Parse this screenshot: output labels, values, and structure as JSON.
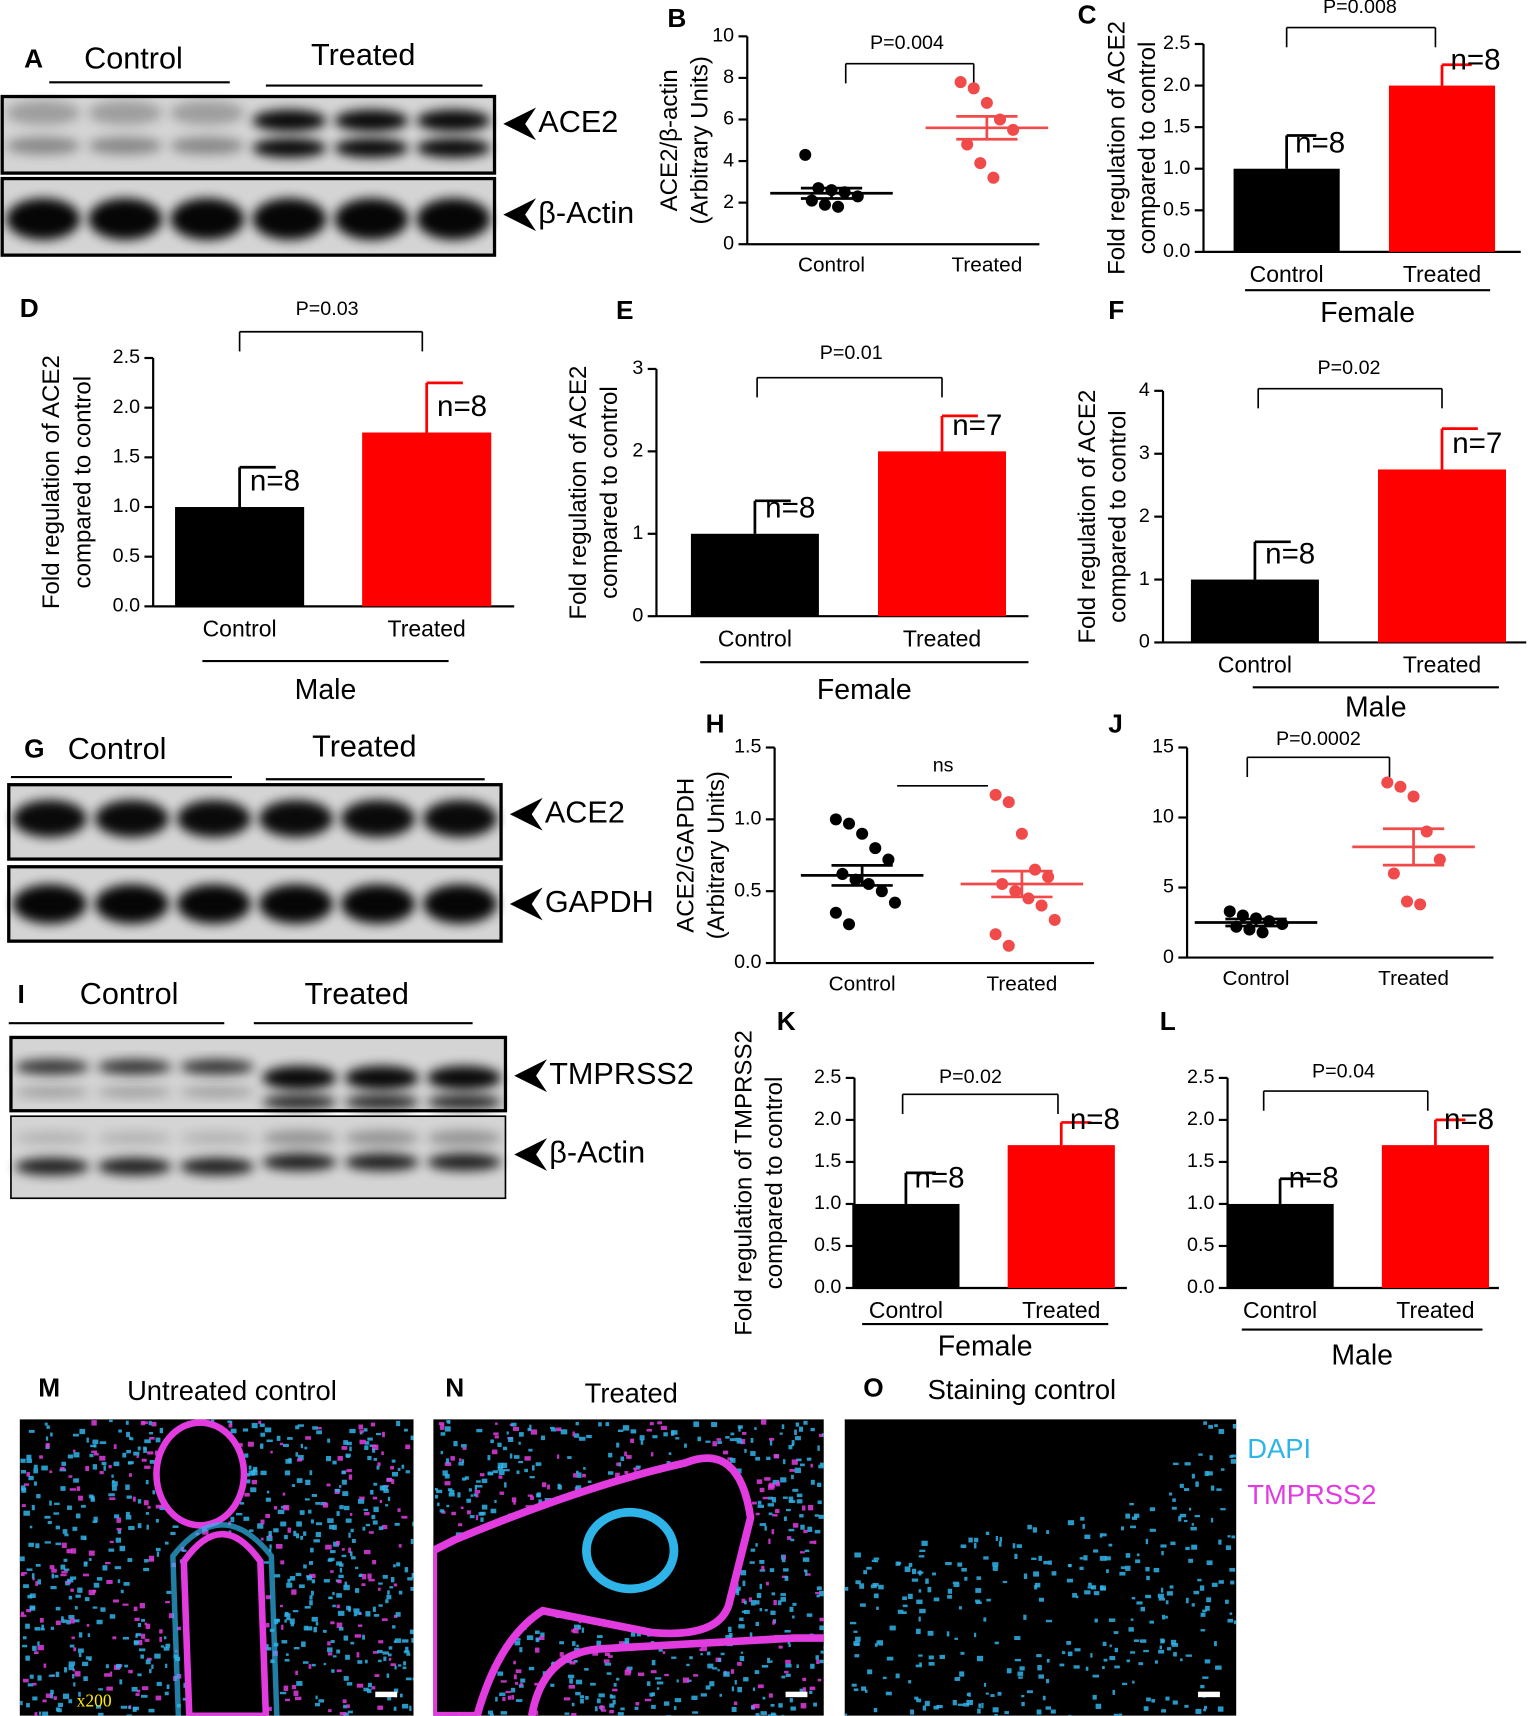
{
  "chart_data": [
    {
      "type": "scatter",
      "panel": "B",
      "ylabel": [
        "ACE2/β-actin",
        "(Arbitrary Units)"
      ],
      "p_label": "P=0.004",
      "ylim": [
        0,
        10
      ],
      "yticks": [
        0,
        2,
        4,
        6,
        8,
        10
      ],
      "series": [
        {
          "name": "Control",
          "color": "#000000",
          "values": [
            4.3,
            2.7,
            2.6,
            2.5,
            2.3,
            2.1,
            1.9,
            1.8
          ],
          "mean": 2.45,
          "sem": 0.25
        },
        {
          "name": "Treated",
          "color": "#f04a4a",
          "values": [
            7.8,
            7.5,
            6.8,
            6.0,
            5.5,
            4.8,
            3.9,
            3.2
          ],
          "mean": 5.6,
          "sem": 0.55
        }
      ]
    },
    {
      "type": "bar",
      "panel": "C",
      "ylabel": [
        "Fold regulation of ACE2",
        "compared to control"
      ],
      "p_label": "P=0.008",
      "group_label": "Female",
      "categories": [
        "Control",
        "Treated"
      ],
      "values": [
        1.0,
        2.0
      ],
      "errors": [
        0.4,
        0.25
      ],
      "n_labels": [
        "n=8",
        "n=8"
      ],
      "colors": [
        "#000000",
        "#ff0000"
      ],
      "ylim": [
        0,
        2.5
      ],
      "yticks": [
        {
          "value": 0,
          "label": "0.0"
        },
        {
          "value": 0.5,
          "label": "0.5"
        },
        {
          "value": 1,
          "label": "1.0"
        },
        {
          "value": 1.5,
          "label": "1.5"
        },
        {
          "value": 2,
          "label": "2.0"
        },
        {
          "value": 2.5,
          "label": "2.5"
        }
      ]
    },
    {
      "type": "bar",
      "panel": "D",
      "ylabel": [
        "Fold regulation of ACE2",
        "compared to control"
      ],
      "p_label": "P=0.03",
      "group_label": "Male",
      "categories": [
        "Control",
        "Treated"
      ],
      "values": [
        1.0,
        1.75
      ],
      "errors": [
        0.4,
        0.5
      ],
      "n_labels": [
        "n=8",
        "n=8"
      ],
      "colors": [
        "#000000",
        "#ff0000"
      ],
      "ylim": [
        0,
        2.5
      ],
      "yticks": [
        {
          "value": 0,
          "label": "0.0"
        },
        {
          "value": 0.5,
          "label": "0.5"
        },
        {
          "value": 1,
          "label": "1.0"
        },
        {
          "value": 1.5,
          "label": "1.5"
        },
        {
          "value": 2,
          "label": "2.0"
        },
        {
          "value": 2.5,
          "label": "2.5"
        }
      ]
    },
    {
      "type": "bar",
      "panel": "E",
      "ylabel": [
        "Fold regulation of ACE2",
        "compared to control"
      ],
      "p_label": "P=0.01",
      "group_label": "Female",
      "categories": [
        "Control",
        "Treated"
      ],
      "values": [
        1.0,
        2.0
      ],
      "errors": [
        0.4,
        0.43
      ],
      "n_labels": [
        "n=8",
        "n=7"
      ],
      "colors": [
        "#000000",
        "#ff0000"
      ],
      "ylim": [
        0,
        3
      ],
      "yticks": [
        0,
        1,
        2,
        3
      ]
    },
    {
      "type": "bar",
      "panel": "F",
      "ylabel": [
        "Fold regulation of ACE2",
        "compared to control"
      ],
      "p_label": "P=0.02",
      "group_label": "Male",
      "categories": [
        "Control",
        "Treated"
      ],
      "values": [
        1.0,
        2.75
      ],
      "errors": [
        0.6,
        0.65
      ],
      "n_labels": [
        "n=8",
        "n=7"
      ],
      "colors": [
        "#000000",
        "#ff0000"
      ],
      "ylim": [
        0,
        4
      ],
      "yticks": [
        0,
        1,
        2,
        3,
        4
      ]
    },
    {
      "type": "scatter",
      "panel": "H",
      "ylabel": [
        "ACE2/GAPDH",
        "(Arbitrary Units)"
      ],
      "p_label": "ns",
      "ylim": [
        0,
        1.5
      ],
      "yticks": [
        {
          "value": 0,
          "label": "0.0"
        },
        {
          "value": 0.5,
          "label": "0.5"
        },
        {
          "value": 1,
          "label": "1.0"
        },
        {
          "value": 1.5,
          "label": "1.5"
        }
      ],
      "series": [
        {
          "name": "Control",
          "color": "#000000",
          "values": [
            1.0,
            0.97,
            0.9,
            0.8,
            0.72,
            0.62,
            0.58,
            0.55,
            0.5,
            0.42,
            0.35,
            0.27
          ],
          "mean": 0.61,
          "sem": 0.07
        },
        {
          "name": "Treated",
          "color": "#f04a4a",
          "values": [
            1.17,
            1.12,
            0.9,
            0.65,
            0.6,
            0.55,
            0.5,
            0.45,
            0.4,
            0.3,
            0.2,
            0.12
          ],
          "mean": 0.55,
          "sem": 0.09
        }
      ]
    },
    {
      "type": "scatter",
      "panel": "J",
      "p_label": "P=0.0002",
      "ylim": [
        0,
        15
      ],
      "yticks": [
        0,
        5,
        10,
        15
      ],
      "series": [
        {
          "name": "Control",
          "color": "#000000",
          "values": [
            3.3,
            3.0,
            2.8,
            2.6,
            2.4,
            2.2,
            2.0,
            1.8
          ],
          "mean": 2.5,
          "sem": 0.25
        },
        {
          "name": "Treated",
          "color": "#f04a4a",
          "values": [
            12.5,
            12.2,
            11.5,
            9.0,
            7.0,
            6.0,
            4.0,
            3.8
          ],
          "mean": 7.9,
          "sem": 1.3
        }
      ]
    },
    {
      "type": "bar",
      "panel": "K",
      "ylabel": [
        "Fold regulation of TMPRSS2",
        "compared to control"
      ],
      "p_label": "P=0.02",
      "group_label": "Female",
      "categories": [
        "Control",
        "Treated"
      ],
      "values": [
        1.0,
        1.7
      ],
      "errors": [
        0.37,
        0.27
      ],
      "n_labels": [
        "n=8",
        "n=8"
      ],
      "colors": [
        "#000000",
        "#ff0000"
      ],
      "ylim": [
        0,
        2.5
      ],
      "yticks": [
        {
          "value": 0,
          "label": "0.0"
        },
        {
          "value": 0.5,
          "label": "0.5"
        },
        {
          "value": 1,
          "label": "1.0"
        },
        {
          "value": 1.5,
          "label": "1.5"
        },
        {
          "value": 2,
          "label": "2.0"
        },
        {
          "value": 2.5,
          "label": "2.5"
        }
      ]
    },
    {
      "type": "bar",
      "panel": "L",
      "p_label": "P=0.04",
      "group_label": "Male",
      "categories": [
        "Control",
        "Treated"
      ],
      "values": [
        1.0,
        1.7
      ],
      "errors": [
        0.3,
        0.3
      ],
      "n_labels": [
        "n=8",
        "n=8"
      ],
      "colors": [
        "#000000",
        "#ff0000"
      ],
      "ylim": [
        0,
        2.5
      ],
      "yticks": [
        {
          "value": 0,
          "label": "0.0"
        },
        {
          "value": 0.5,
          "label": "0.5"
        },
        {
          "value": 1,
          "label": "1.0"
        },
        {
          "value": 1.5,
          "label": "1.5"
        },
        {
          "value": 2,
          "label": "2.0"
        },
        {
          "value": 2.5,
          "label": "2.5"
        }
      ]
    }
  ],
  "blots": [
    {
      "panel": "A",
      "groups": [
        "Control",
        "Treated"
      ],
      "rows": [
        "ACE2",
        "β-Actin"
      ]
    },
    {
      "panel": "G",
      "groups": [
        "Control",
        "Treated"
      ],
      "rows": [
        "ACE2",
        "GAPDH"
      ]
    },
    {
      "panel": "I",
      "groups": [
        "Control",
        "Treated"
      ],
      "rows": [
        "TMPRSS2",
        "β-Actin"
      ]
    }
  ],
  "images": [
    {
      "panel": "M",
      "title": "Untreated control"
    },
    {
      "panel": "N",
      "title": "Treated"
    },
    {
      "panel": "O",
      "title": "Staining control"
    }
  ],
  "magnification": "x200",
  "stain_legend": [
    {
      "name": "DAPI",
      "color": "#2fb4ea"
    },
    {
      "name": "TMPRSS2",
      "color": "#e23ce0"
    }
  ]
}
